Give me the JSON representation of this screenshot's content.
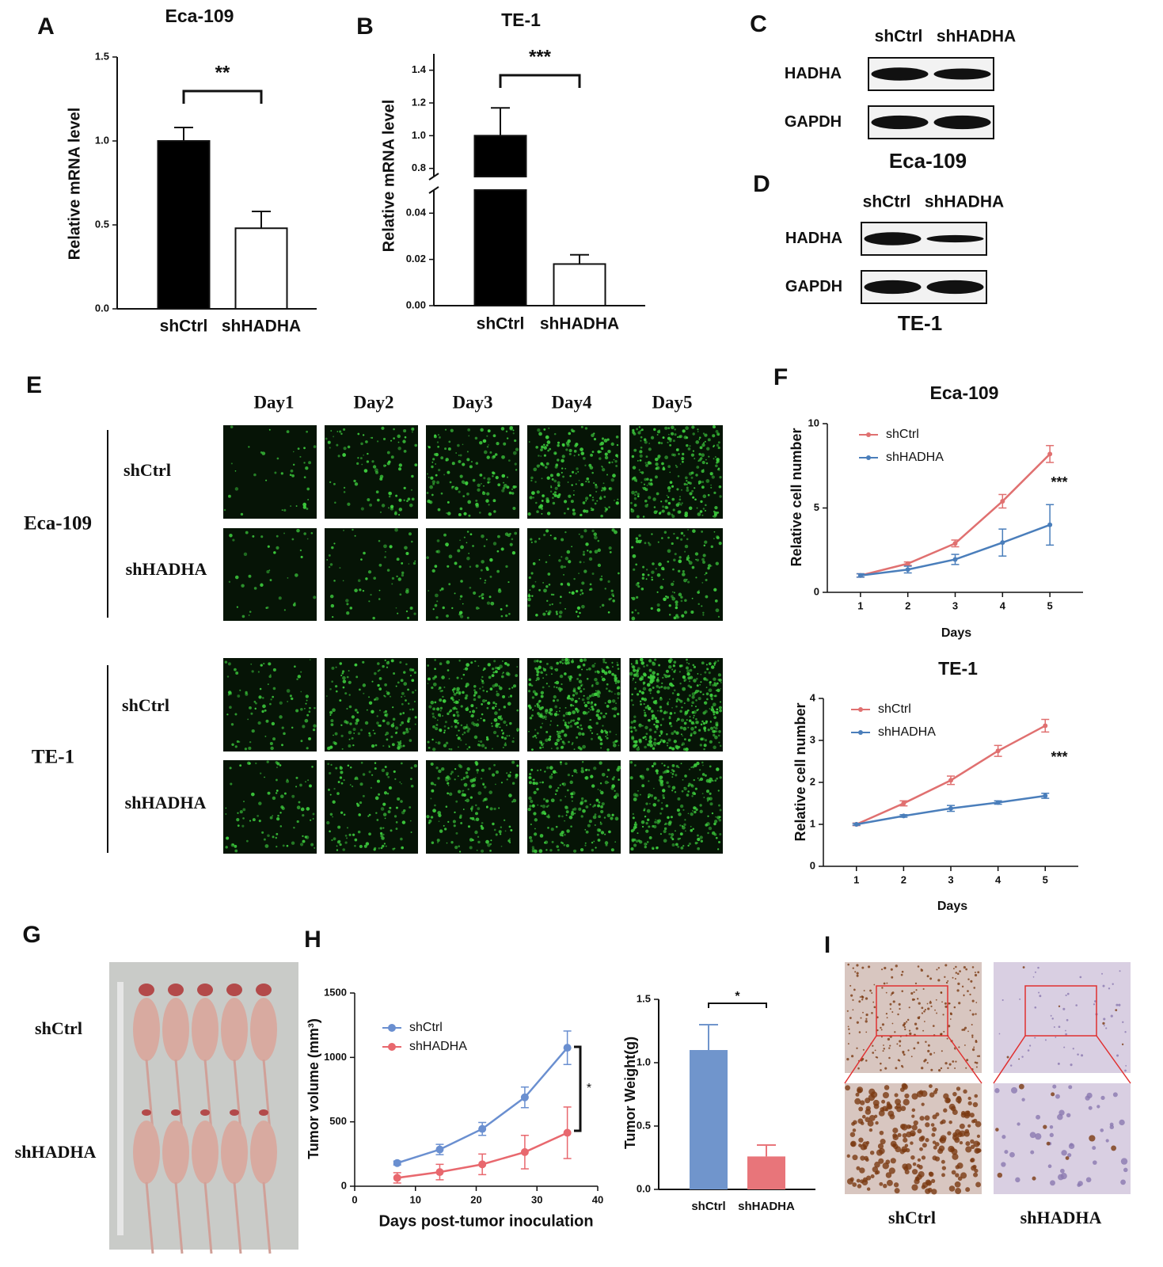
{
  "panel_labels": [
    "A",
    "B",
    "C",
    "D",
    "E",
    "F",
    "G",
    "H",
    "I"
  ],
  "chart_data": [
    {
      "type": "bar",
      "title": "Eca-109",
      "ylabel": "Relative mRNA level",
      "categories": [
        "shCtrl",
        "shHADHA"
      ],
      "values": [
        1.0,
        0.48
      ],
      "errors": [
        0.08,
        0.1
      ],
      "colors": [
        "#000000",
        "#ffffff"
      ],
      "ylim": [
        0,
        1.5
      ],
      "yticks": [
        {
          "value": 0,
          "label": "0.0"
        },
        {
          "value": 0.5,
          "label": "0.5"
        },
        {
          "value": 1,
          "label": "1.0"
        },
        {
          "value": 1.5,
          "label": "1.5"
        }
      ],
      "annotation": "**"
    },
    {
      "type": "bar",
      "title": "TE-1",
      "ylabel": "Relative mRNA level",
      "categories": [
        "shCtrl",
        "shHADHA"
      ],
      "values": [
        1.0,
        0.018
      ],
      "errors": [
        0.17,
        0.004
      ],
      "colors": [
        "#000000",
        "#ffffff"
      ],
      "ylim_lower": [
        0,
        0.05
      ],
      "ylim_upper": [
        0.75,
        1.5
      ],
      "yticks_lower": [
        {
          "value": 0,
          "label": "0.00"
        },
        {
          "value": 0.02,
          "label": "0.02"
        },
        {
          "value": 0.04,
          "label": "0.04"
        }
      ],
      "yticks_upper": [
        {
          "value": 0.8,
          "label": "0.8"
        },
        {
          "value": 1,
          "label": "1.0"
        },
        {
          "value": 1.2,
          "label": "1.2"
        },
        {
          "value": 1.4,
          "label": "1.4"
        }
      ],
      "annotation": "***"
    },
    {
      "type": "line",
      "title": "Eca-109",
      "xlabel": "Days",
      "ylabel": "Relative cell number",
      "x": [
        1,
        2,
        3,
        4,
        5
      ],
      "xlim": [
        0.3,
        5.7
      ],
      "xticks": [
        1,
        2,
        3,
        4,
        5
      ],
      "ylim": [
        0,
        10
      ],
      "yticks": [
        0,
        5,
        10
      ],
      "series": [
        {
          "name": "shCtrl",
          "color": "#e07070",
          "values": [
            1,
            1.7,
            2.9,
            5.4,
            8.2
          ],
          "errors": [
            0.1,
            0.1,
            0.2,
            0.4,
            0.5
          ]
        },
        {
          "name": "shHADHA",
          "color": "#4a7ebb",
          "values": [
            1,
            1.35,
            1.95,
            2.95,
            4.0
          ],
          "errors": [
            0.1,
            0.2,
            0.3,
            0.8,
            1.2
          ]
        }
      ],
      "annotation": "***"
    },
    {
      "type": "line",
      "title": "TE-1",
      "xlabel": "Days",
      "ylabel": "Relative cell number",
      "x": [
        1,
        2,
        3,
        4,
        5
      ],
      "xlim": [
        0.3,
        5.7
      ],
      "xticks": [
        1,
        2,
        3,
        4,
        5
      ],
      "ylim": [
        0,
        4
      ],
      "yticks": [
        0,
        1,
        2,
        3,
        4
      ],
      "series": [
        {
          "name": "shCtrl",
          "color": "#e07070",
          "values": [
            1,
            1.5,
            2.05,
            2.75,
            3.35
          ],
          "errors": [
            0.03,
            0.06,
            0.1,
            0.13,
            0.15
          ]
        },
        {
          "name": "shHADHA",
          "color": "#4a7ebb",
          "values": [
            1,
            1.2,
            1.38,
            1.52,
            1.68
          ],
          "errors": [
            0.02,
            0.03,
            0.07,
            0.04,
            0.06
          ]
        }
      ],
      "annotation": "***"
    },
    {
      "type": "line",
      "xlabel": "Days post-tumor inoculation",
      "ylabel": "Tumor volume (mm³)",
      "x": [
        7,
        14,
        21,
        28,
        35
      ],
      "xlim": [
        0,
        40
      ],
      "xticks": [
        0,
        10,
        20,
        30,
        40
      ],
      "ylim": [
        0,
        1500
      ],
      "yticks": [
        0,
        500,
        1000,
        1500
      ],
      "series": [
        {
          "name": "shCtrl",
          "color": "#6a8fd0",
          "values": [
            180,
            285,
            445,
            690,
            1075
          ],
          "errors": [
            15,
            40,
            50,
            80,
            130
          ]
        },
        {
          "name": "shHADHA",
          "color": "#e8686e",
          "values": [
            65,
            110,
            170,
            265,
            415
          ],
          "errors": [
            40,
            60,
            80,
            130,
            200
          ]
        }
      ],
      "annotation": "*"
    },
    {
      "type": "bar",
      "ylabel": "Tumor Weight(g)",
      "categories": [
        "shCtrl",
        "shHADHA"
      ],
      "values": [
        1.1,
        0.26
      ],
      "errors": [
        0.2,
        0.09
      ],
      "colors": [
        "#7095cc",
        "#e8757a"
      ],
      "ylim": [
        0,
        1.5
      ],
      "yticks": [
        {
          "value": 0,
          "label": "0.0"
        },
        {
          "value": 0.5,
          "label": "0.5"
        },
        {
          "value": 1,
          "label": "1.0"
        },
        {
          "value": 1.5,
          "label": "1.5"
        }
      ],
      "annotation": "*"
    }
  ],
  "blots": [
    {
      "lanes": [
        "shCtrl",
        "shHADHA"
      ],
      "proteins": [
        "HADHA",
        "GAPDH"
      ],
      "cell_line": "Eca-109"
    },
    {
      "lanes": [
        "shCtrl",
        "shHADHA"
      ],
      "proteins": [
        "HADHA",
        "GAPDH"
      ],
      "cell_line": "TE-1"
    }
  ],
  "microscopy": {
    "days": [
      "Day1",
      "Day2",
      "Day3",
      "Day4",
      "Day5"
    ],
    "groups": [
      {
        "name": "Eca-109",
        "rows": [
          "shCtrl",
          "shHADHA"
        ]
      },
      {
        "name": "TE-1",
        "rows": [
          "shCtrl",
          "shHADHA"
        ]
      }
    ]
  },
  "xenograft": {
    "rows": [
      "shCtrl",
      "shHADHA"
    ]
  },
  "ihc": {
    "columns": [
      "shCtrl",
      "shHADHA"
    ]
  }
}
